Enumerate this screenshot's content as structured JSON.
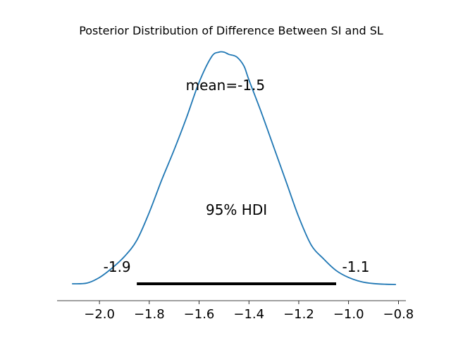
{
  "chart_data": {
    "type": "area",
    "title": "Posterior Distribution of Difference Between SI and SL",
    "xlabel": "",
    "ylabel": "",
    "xlim": [
      -2.17,
      -0.77
    ],
    "ylim": [
      0,
      1.0
    ],
    "grid": false,
    "show_y_axis": false,
    "line_color": "#1f77b4",
    "hdi_color": "#000000",
    "xticks": [
      -2.0,
      -1.8,
      -1.6,
      -1.4,
      -1.2,
      -1.0,
      -0.8
    ],
    "xtick_labels": [
      "−2.0",
      "−1.8",
      "−1.6",
      "−1.4",
      "−1.2",
      "−1.0",
      "−0.8"
    ],
    "density": {
      "x": [
        -2.11,
        -2.05,
        -2.0,
        -1.95,
        -1.9,
        -1.85,
        -1.8,
        -1.75,
        -1.7,
        -1.65,
        -1.6,
        -1.55,
        -1.52,
        -1.5,
        -1.48,
        -1.45,
        -1.42,
        -1.4,
        -1.35,
        -1.3,
        -1.25,
        -1.2,
        -1.15,
        -1.1,
        -1.05,
        -1.0,
        -0.95,
        -0.9,
        -0.85,
        -0.81
      ],
      "y": [
        0.003,
        0.006,
        0.03,
        0.07,
        0.12,
        0.19,
        0.31,
        0.45,
        0.58,
        0.72,
        0.87,
        0.98,
        1.0,
        1.0,
        0.99,
        0.98,
        0.94,
        0.88,
        0.74,
        0.59,
        0.44,
        0.29,
        0.17,
        0.11,
        0.06,
        0.03,
        0.012,
        0.004,
        0.001,
        0.0
      ]
    },
    "mean": -1.5,
    "mean_label": "mean=-1.5",
    "hdi": {
      "label": "95% HDI",
      "low": -1.85,
      "high": -1.05,
      "low_label": "-1.9",
      "high_label": "-1.1"
    }
  }
}
